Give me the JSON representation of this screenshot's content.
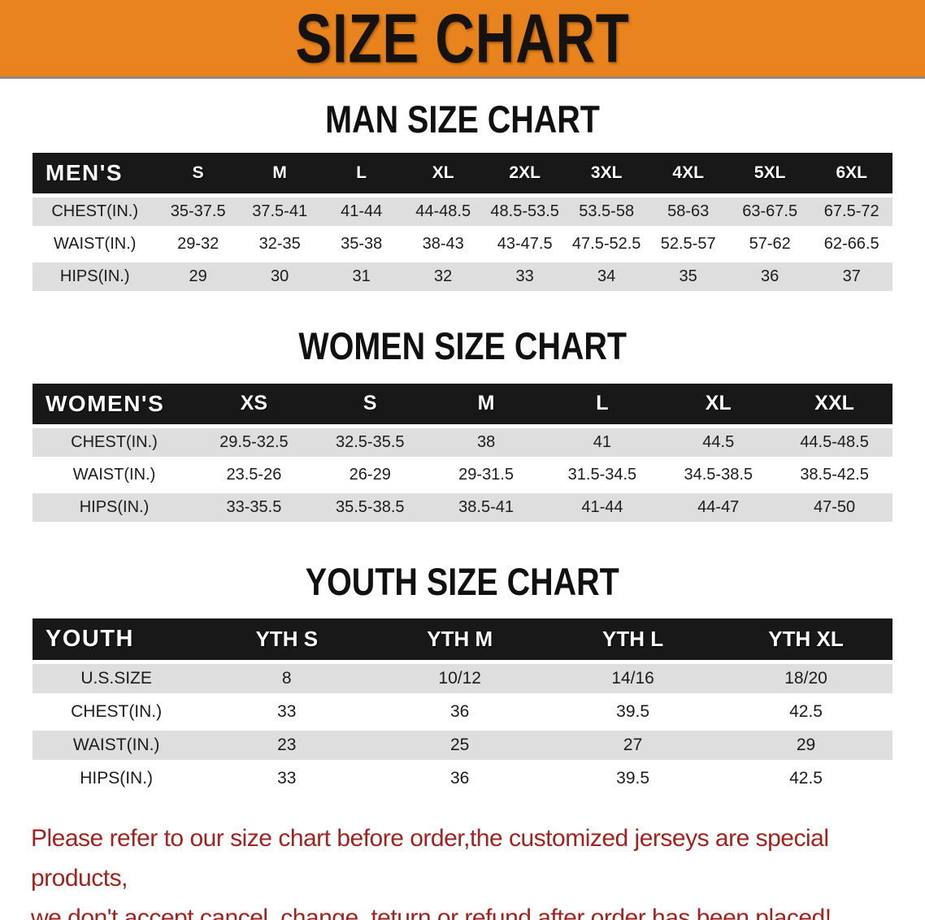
{
  "banner": {
    "title": "SIZE CHART"
  },
  "colors": {
    "banner_bg": "#E8831D",
    "header_bg": "#181818",
    "row_alt": "#DEDEDE",
    "footer_red": "#A22420"
  },
  "men": {
    "heading": "MAN SIZE CHART",
    "table": {
      "label_header": "MEN'S",
      "columns": [
        "S",
        "M",
        "L",
        "XL",
        "2XL",
        "3XL",
        "4XL",
        "5XL",
        "6XL"
      ],
      "rows": [
        {
          "label": "CHEST(IN.)",
          "values": [
            "35-37.5",
            "37.5-41",
            "41-44",
            "44-48.5",
            "48.5-53.5",
            "53.5-58",
            "58-63",
            "63-67.5",
            "67.5-72"
          ]
        },
        {
          "label": "WAIST(IN.)",
          "values": [
            "29-32",
            "32-35",
            "35-38",
            "38-43",
            "43-47.5",
            "47.5-52.5",
            "52.5-57",
            "57-62",
            "62-66.5"
          ]
        },
        {
          "label": "HIPS(IN.)",
          "values": [
            "29",
            "30",
            "31",
            "32",
            "33",
            "34",
            "35",
            "36",
            "37"
          ]
        }
      ]
    }
  },
  "women": {
    "heading": "WOMEN SIZE CHART",
    "table": {
      "label_header": "WOMEN'S",
      "columns": [
        "XS",
        "S",
        "M",
        "L",
        "XL",
        "XXL"
      ],
      "rows": [
        {
          "label": "CHEST(IN.)",
          "values": [
            "29.5-32.5",
            "32.5-35.5",
            "38",
            "41",
            "44.5",
            "44.5-48.5"
          ]
        },
        {
          "label": "WAIST(IN.)",
          "values": [
            "23.5-26",
            "26-29",
            "29-31.5",
            "31.5-34.5",
            "34.5-38.5",
            "38.5-42.5"
          ]
        },
        {
          "label": "HIPS(IN.)",
          "values": [
            "33-35.5",
            "35.5-38.5",
            "38.5-41",
            "41-44",
            "44-47",
            "47-50"
          ]
        }
      ]
    }
  },
  "youth": {
    "heading": "YOUTH SIZE CHART",
    "table": {
      "label_header": "YOUTH",
      "columns": [
        "YTH S",
        "YTH M",
        "YTH L",
        "YTH XL"
      ],
      "rows": [
        {
          "label": "U.S.SIZE",
          "values": [
            "8",
            "10/12",
            "14/16",
            "18/20"
          ]
        },
        {
          "label": "CHEST(IN.)",
          "values": [
            "33",
            "36",
            "39.5",
            "42.5"
          ]
        },
        {
          "label": "WAIST(IN.)",
          "values": [
            "23",
            "25",
            "27",
            "29"
          ]
        },
        {
          "label": "HIPS(IN.)",
          "values": [
            "33",
            "36",
            "39.5",
            "42.5"
          ]
        }
      ]
    }
  },
  "footer": {
    "line1": "Please refer to our size chart before order,the customized jerseys are special products,",
    "line2": "we don't accept cancel, change, teturn or refund after order has been placed!"
  }
}
